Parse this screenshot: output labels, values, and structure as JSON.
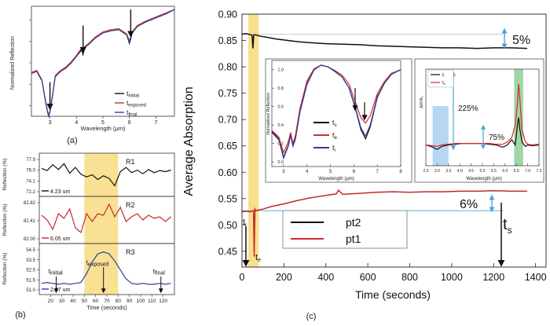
{
  "figure": {
    "panel_labels": [
      "(a)",
      "(b)",
      "(c)"
    ]
  },
  "colors": {
    "initial": "#111111",
    "exposed": "#d42a2a",
    "final": "#2b3f9e",
    "highlight": "#f7d770",
    "guide": "#4aa3d8",
    "blue_band": "#a9cfee",
    "green_band": "#8fcf95"
  },
  "chart_data": [
    {
      "id": "a",
      "type": "line",
      "title": "",
      "xlabel": "Wavelength (µm)",
      "ylabel": "Normalized Reflection",
      "xlim": [
        2.3,
        7.7
      ],
      "ylim": [
        0,
        1
      ],
      "xticks": [
        "3",
        "4",
        "5",
        "6",
        "7"
      ],
      "x": [
        2.3,
        2.5,
        2.7,
        2.8,
        2.9,
        2.95,
        3.0,
        3.1,
        3.2,
        3.4,
        3.6,
        3.8,
        4.0,
        4.2,
        4.25,
        4.3,
        4.5,
        4.7,
        5.0,
        5.3,
        5.6,
        5.9,
        6.0,
        6.05,
        6.1,
        6.3,
        6.6,
        7.0,
        7.4,
        7.7
      ],
      "series": [
        {
          "name": "t_initial",
          "values": [
            0.4,
            0.42,
            0.33,
            0.18,
            0.05,
            0.0,
            0.04,
            0.2,
            0.37,
            0.42,
            0.45,
            0.5,
            0.56,
            0.62,
            0.57,
            0.64,
            0.68,
            0.73,
            0.78,
            0.8,
            0.81,
            0.76,
            0.68,
            0.72,
            0.78,
            0.84,
            0.88,
            0.92,
            0.96,
            1.0
          ]
        },
        {
          "name": "t_exposed",
          "values": [
            0.41,
            0.43,
            0.34,
            0.19,
            0.06,
            0.01,
            0.05,
            0.21,
            0.38,
            0.43,
            0.46,
            0.51,
            0.57,
            0.64,
            0.6,
            0.65,
            0.69,
            0.74,
            0.79,
            0.81,
            0.82,
            0.77,
            0.71,
            0.74,
            0.79,
            0.85,
            0.89,
            0.93,
            0.97,
            1.0
          ]
        },
        {
          "name": "t_final",
          "values": [
            0.4,
            0.42,
            0.33,
            0.18,
            0.05,
            0.0,
            0.04,
            0.2,
            0.37,
            0.42,
            0.45,
            0.5,
            0.56,
            0.63,
            0.58,
            0.64,
            0.68,
            0.73,
            0.78,
            0.8,
            0.81,
            0.76,
            0.69,
            0.73,
            0.78,
            0.84,
            0.88,
            0.92,
            0.96,
            1.0
          ]
        }
      ],
      "legend": [
        "t",
        "initial",
        "t",
        "exposed",
        "t",
        "final"
      ],
      "arrows_at": [
        3.0,
        4.25,
        6.05
      ]
    },
    {
      "id": "b",
      "type": "line",
      "xlabel": "Time (seconds)",
      "ylabel": "Reflection (%)",
      "xlim": [
        10,
        130
      ],
      "xticks": [
        "20",
        "30",
        "40",
        "50",
        "60",
        "70",
        "80",
        "90",
        "100",
        "110",
        "120"
      ],
      "highlight": [
        50,
        80
      ],
      "x": [
        12,
        17,
        22,
        27,
        32,
        37,
        42,
        47,
        52,
        57,
        62,
        67,
        72,
        77,
        82,
        87,
        92,
        97,
        102,
        107,
        112,
        117,
        122,
        127
      ],
      "subplots": [
        {
          "name": "R1",
          "wavelength_label": "4.23 um",
          "ylim": [
            71.5,
            78.5
          ],
          "yticks": [
            "77.9",
            "76.0",
            "74.1",
            "72.2"
          ],
          "values": [
            76.2,
            75.8,
            76.9,
            76.0,
            77.1,
            75.3,
            76.4,
            75.1,
            74.6,
            75.0,
            74.1,
            74.8,
            74.3,
            72.9,
            75.6,
            76.4,
            75.4,
            75.9,
            75.2,
            76.0,
            75.4,
            75.8,
            75.6,
            75.9
          ],
          "color": "#111111"
        },
        {
          "name": "R2",
          "wavelength_label": "6.05 um",
          "ylim": [
            81.7,
            83.0
          ],
          "yticks": [
            "82.82",
            "82.41",
            "82.00"
          ],
          "values": [
            82.5,
            82.35,
            82.05,
            82.55,
            82.4,
            82.7,
            82.1,
            81.95,
            82.55,
            82.3,
            82.55,
            82.5,
            82.85,
            82.45,
            82.75,
            82.3,
            82.45,
            82.55,
            82.35,
            82.5,
            82.4,
            82.45,
            82.3,
            82.45
          ],
          "color": "#c62828"
        },
        {
          "name": "R3",
          "wavelength_label": "2.97 um",
          "ylim": [
            50.2,
            55.2
          ],
          "yticks": [
            "54.5",
            "53.5",
            "52.5",
            "51.5",
            "51.0"
          ],
          "values": [
            51.1,
            51.2,
            51.1,
            51.0,
            51.1,
            51.0,
            51.1,
            51.2,
            52.2,
            53.5,
            54.4,
            54.6,
            54.4,
            53.6,
            52.6,
            51.6,
            51.1,
            51.0,
            51.1,
            51.0,
            51.0,
            51.1,
            51.0,
            51.1
          ],
          "color": "#2b3f9e"
        }
      ],
      "annotations": [
        {
          "text": "t",
          "sub": "initial",
          "x": 25
        },
        {
          "text": "t",
          "sub": "exposed",
          "x": 67
        },
        {
          "text": "t",
          "sub": "final",
          "x": 118
        }
      ]
    },
    {
      "id": "c",
      "type": "line",
      "xlabel": "Time (seconds)",
      "ylabel": "Average Absorption",
      "xlim": [
        0,
        1450
      ],
      "ylim": [
        0.42,
        0.9
      ],
      "xticks": [
        0,
        200,
        400,
        600,
        800,
        1000,
        1200,
        1400
      ],
      "yticks": [
        "0.45",
        "0.50",
        "0.55",
        "0.60",
        "0.65",
        "0.70",
        "0.75",
        "0.80",
        "0.85",
        "0.90"
      ],
      "highlight": [
        30,
        80
      ],
      "series": [
        {
          "name": "pt2",
          "x": [
            0,
            20,
            40,
            48,
            52,
            56,
            60,
            70,
            90,
            120,
            160,
            200,
            260,
            320,
            400,
            480,
            560,
            640,
            720,
            800,
            880,
            960,
            1040,
            1120,
            1200,
            1280,
            1360
          ],
          "values": [
            0.862,
            0.863,
            0.861,
            0.86,
            0.835,
            0.86,
            0.861,
            0.86,
            0.858,
            0.856,
            0.853,
            0.851,
            0.848,
            0.846,
            0.844,
            0.843,
            0.842,
            0.84,
            0.839,
            0.838,
            0.837,
            0.836,
            0.836,
            0.835,
            0.836,
            0.836,
            0.835
          ]
        },
        {
          "name": "pt1",
          "x": [
            0,
            20,
            40,
            55,
            58,
            62,
            66,
            75,
            100,
            140,
            200,
            260,
            320,
            400,
            450,
            460,
            480,
            560,
            640,
            720,
            800,
            880,
            960,
            1040,
            1120,
            1200,
            1280,
            1360
          ],
          "values": [
            0.525,
            0.526,
            0.525,
            0.527,
            0.44,
            0.53,
            0.527,
            0.528,
            0.53,
            0.535,
            0.54,
            0.546,
            0.551,
            0.556,
            0.559,
            0.566,
            0.558,
            0.56,
            0.562,
            0.563,
            0.562,
            0.563,
            0.563,
            0.564,
            0.564,
            0.565,
            0.564,
            0.564
          ]
        }
      ],
      "reference_lines": [
        0.862,
        0.527
      ],
      "annotations": {
        "pct_top": "5%",
        "pct_bottom": "6%",
        "t_i": "t",
        "t_i_sub": "i",
        "t_e": "t",
        "t_e_sub": "e",
        "t_s": "t",
        "t_s_sub": "s"
      },
      "legend": [
        "pt2",
        "pt1"
      ]
    },
    {
      "id": "c_inset1",
      "type": "line",
      "xlabel": "Wavelength (µm)",
      "ylabel": "Normalized Reflection",
      "xlim": [
        2.5,
        8.0
      ],
      "ylim": [
        -0.05,
        1.1
      ],
      "xticks": [
        "3",
        "4",
        "5",
        "6",
        "7",
        "8"
      ],
      "yticks": [
        "0.0",
        "0.2",
        "0.4",
        "0.6",
        "0.8",
        "1.0"
      ],
      "x": [
        2.5,
        2.8,
        3.0,
        3.2,
        3.3,
        3.4,
        3.5,
        3.7,
        4.0,
        4.3,
        4.6,
        4.9,
        5.2,
        5.5,
        5.8,
        6.1,
        6.3,
        6.5,
        6.7,
        7.0,
        7.3,
        7.6,
        8.0
      ],
      "series": [
        {
          "name": "t_s",
          "values": [
            0.33,
            0.25,
            0.05,
            0.18,
            0.3,
            0.18,
            0.25,
            0.55,
            0.85,
            1.0,
            1.05,
            1.03,
            0.98,
            0.92,
            0.8,
            0.55,
            0.35,
            0.25,
            0.38,
            0.7,
            0.85,
            0.95,
            1.0
          ]
        },
        {
          "name": "t_e",
          "values": [
            0.34,
            0.27,
            0.1,
            0.22,
            0.32,
            0.2,
            0.28,
            0.58,
            0.88,
            1.01,
            1.05,
            1.03,
            0.99,
            0.94,
            0.84,
            0.62,
            0.48,
            0.42,
            0.5,
            0.74,
            0.87,
            0.96,
            1.0
          ]
        },
        {
          "name": "t_i",
          "values": [
            0.32,
            0.24,
            0.04,
            0.17,
            0.29,
            0.17,
            0.24,
            0.54,
            0.84,
            1.0,
            1.05,
            1.03,
            0.98,
            0.92,
            0.8,
            0.56,
            0.37,
            0.28,
            0.4,
            0.71,
            0.85,
            0.95,
            1.0
          ]
        }
      ],
      "legend": [
        "t",
        "s",
        "t",
        "e",
        "t",
        "i"
      ]
    },
    {
      "id": "c_inset2",
      "type": "line",
      "xlabel": "Wavelength (µm)",
      "ylabel": "ΔR/R₀",
      "xlim": [
        2.5,
        7.5
      ],
      "xticks": [
        "2.5",
        "3.0",
        "3.5",
        "4.0",
        "4.5",
        "5.0",
        "5.5",
        "6.0",
        "6.5",
        "7.0",
        "7.5"
      ],
      "ylim": [
        -0.3,
        1.0
      ],
      "bands": [
        [
          2.8,
          3.5
        ],
        [
          6.4,
          6.8
        ]
      ],
      "x": [
        2.5,
        2.8,
        3.0,
        3.2,
        3.5,
        3.8,
        4.1,
        4.4,
        4.7,
        5.0,
        5.3,
        5.6,
        5.9,
        6.1,
        6.3,
        6.45,
        6.55,
        6.6,
        6.65,
        6.75,
        6.9,
        7.0,
        7.2,
        7.5
      ],
      "series": [
        {
          "name": "t_i",
          "values": [
            -0.02,
            -0.05,
            -0.08,
            -0.04,
            -0.02,
            -0.01,
            0.0,
            0.0,
            0.0,
            0.0,
            -0.01,
            -0.02,
            -0.05,
            -0.02,
            0.05,
            -0.02,
            0.25,
            0.35,
            0.2,
            0.02,
            -0.04,
            -0.02,
            -0.03,
            -0.02
          ]
        },
        {
          "name": "t_s",
          "values": [
            -0.02,
            -0.03,
            -0.04,
            -0.02,
            -0.01,
            0.0,
            0.0,
            0.0,
            0.0,
            0.0,
            0.0,
            -0.01,
            -0.01,
            0.02,
            0.08,
            0.25,
            0.55,
            0.8,
            0.62,
            0.18,
            0.02,
            -0.01,
            -0.02,
            -0.01
          ]
        }
      ],
      "legend": [
        "t",
        "i",
        "t",
        "s"
      ],
      "annotations": {
        "pct_large": "225%",
        "pct_small": "75%"
      }
    }
  ]
}
